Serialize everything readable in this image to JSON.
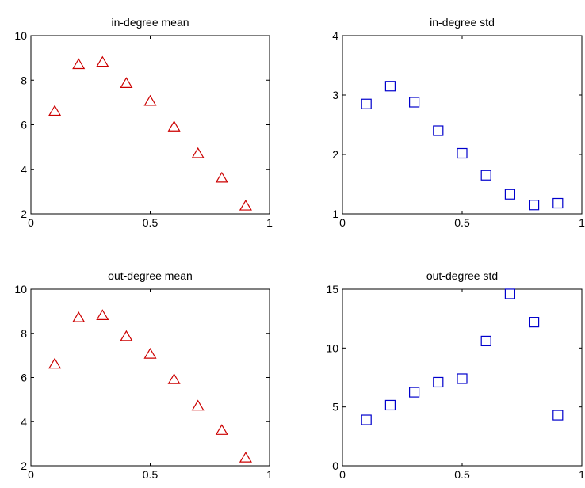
{
  "chart_data": [
    {
      "type": "scatter",
      "title": "in-degree mean",
      "xlabel": "",
      "ylabel": "",
      "xlim": [
        0,
        1
      ],
      "ylim": [
        2,
        10
      ],
      "xticks": [
        0,
        0.5,
        1
      ],
      "xtick_labels": [
        "0",
        "0.5",
        "1"
      ],
      "yticks": [
        2,
        4,
        6,
        8,
        10
      ],
      "ytick_labels": [
        "2",
        "4",
        "6",
        "8",
        "10"
      ],
      "marker": "triangle",
      "color": "#cc0000",
      "grid": false,
      "x": [
        0.1,
        0.2,
        0.3,
        0.4,
        0.5,
        0.6,
        0.7,
        0.8,
        0.9
      ],
      "y": [
        6.6,
        8.7,
        8.8,
        7.85,
        7.05,
        5.9,
        4.7,
        3.6,
        2.35
      ]
    },
    {
      "type": "scatter",
      "title": "in-degree std",
      "xlabel": "",
      "ylabel": "",
      "xlim": [
        0,
        1
      ],
      "ylim": [
        1,
        4
      ],
      "xticks": [
        0,
        0.5,
        1
      ],
      "xtick_labels": [
        "0",
        "0.5",
        "1"
      ],
      "yticks": [
        1,
        2,
        3,
        4
      ],
      "ytick_labels": [
        "1",
        "2",
        "3",
        "4"
      ],
      "marker": "square",
      "color": "#0000cc",
      "grid": false,
      "x": [
        0.1,
        0.2,
        0.3,
        0.4,
        0.5,
        0.6,
        0.7,
        0.8,
        0.9
      ],
      "y": [
        2.85,
        3.15,
        2.88,
        2.4,
        2.02,
        1.65,
        1.33,
        1.15,
        1.18
      ]
    },
    {
      "type": "scatter",
      "title": "out-degree mean",
      "xlabel": "",
      "ylabel": "",
      "xlim": [
        0,
        1
      ],
      "ylim": [
        2,
        10
      ],
      "xticks": [
        0,
        0.5,
        1
      ],
      "xtick_labels": [
        "0",
        "0.5",
        "1"
      ],
      "yticks": [
        2,
        4,
        6,
        8,
        10
      ],
      "ytick_labels": [
        "2",
        "4",
        "6",
        "8",
        "10"
      ],
      "marker": "triangle",
      "color": "#cc0000",
      "grid": false,
      "x": [
        0.1,
        0.2,
        0.3,
        0.4,
        0.5,
        0.6,
        0.7,
        0.8,
        0.9
      ],
      "y": [
        6.6,
        8.7,
        8.8,
        7.85,
        7.05,
        5.9,
        4.7,
        3.6,
        2.35
      ]
    },
    {
      "type": "scatter",
      "title": "out-degree std",
      "xlabel": "",
      "ylabel": "",
      "xlim": [
        0,
        1
      ],
      "ylim": [
        0,
        15
      ],
      "xticks": [
        0,
        0.5,
        1
      ],
      "xtick_labels": [
        "0",
        "0.5",
        "1"
      ],
      "yticks": [
        0,
        5,
        10,
        15
      ],
      "ytick_labels": [
        "0",
        "5",
        "10",
        "15"
      ],
      "marker": "square",
      "color": "#0000cc",
      "grid": false,
      "x": [
        0.1,
        0.2,
        0.3,
        0.4,
        0.5,
        0.6,
        0.7,
        0.8,
        0.9
      ],
      "y": [
        3.9,
        5.15,
        6.25,
        7.1,
        7.4,
        10.6,
        14.6,
        12.2,
        4.3
      ]
    }
  ]
}
